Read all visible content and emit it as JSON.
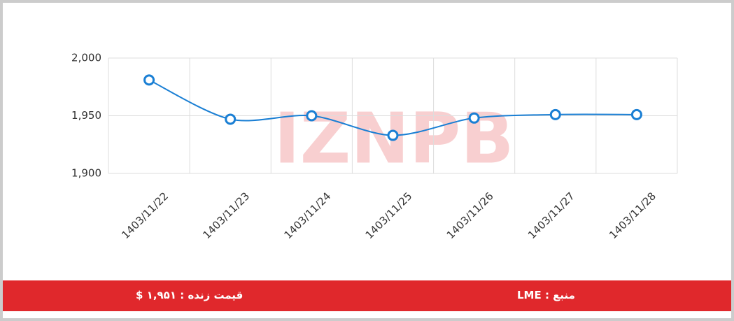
{
  "chart_data": {
    "type": "line",
    "watermark": "IZNPB",
    "categories": [
      "1403/11/22",
      "1403/11/23",
      "1403/11/24",
      "1403/11/25",
      "1403/11/26",
      "1403/11/27",
      "1403/11/28"
    ],
    "series": [
      {
        "name": "LME",
        "color": "#1a7fd4",
        "values": [
          1981,
          1947,
          1950,
          1933,
          1948,
          1951,
          1951
        ]
      }
    ],
    "ylim": [
      1900,
      2000
    ],
    "yticks": [
      {
        "value": 1900,
        "label": "1,900"
      },
      {
        "value": 1950,
        "label": "1,950"
      },
      {
        "value": 2000,
        "label": "2,000"
      }
    ],
    "grid": true
  },
  "footer": {
    "price": "قیمت زنده : ۱,۹۵۱ $",
    "source": "منبع : LME"
  }
}
